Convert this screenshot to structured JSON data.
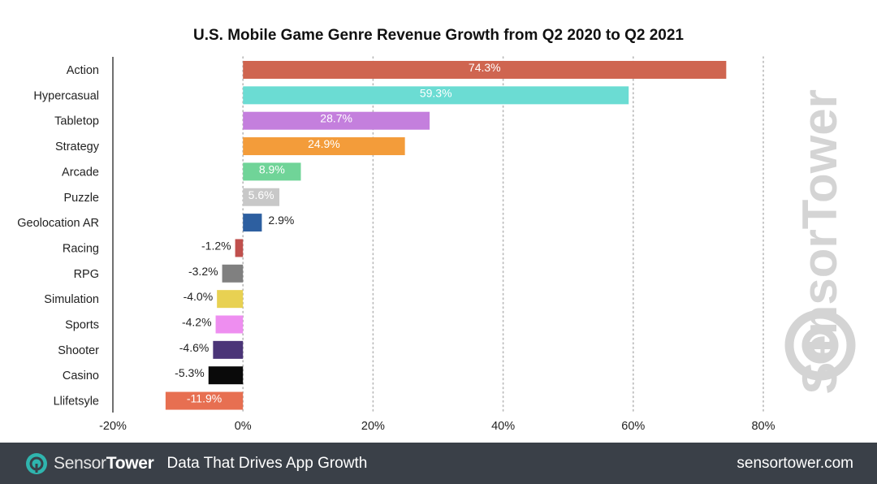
{
  "chart_data": {
    "type": "bar",
    "orientation": "horizontal",
    "title": "U.S. Mobile Game Genre Revenue Growth from Q2 2020 to Q2 2021",
    "categories": [
      "Action",
      "Hypercasual",
      "Tabletop",
      "Strategy",
      "Arcade",
      "Puzzle",
      "Geolocation AR",
      "Racing",
      "RPG",
      "Simulation",
      "Sports",
      "Shooter",
      "Casino",
      "Llifetsyle"
    ],
    "values": [
      74.3,
      59.3,
      28.7,
      24.9,
      8.9,
      5.6,
      2.9,
      -1.2,
      -3.2,
      -4.0,
      -4.2,
      -4.6,
      -5.3,
      -11.9
    ],
    "value_labels": [
      "74.3%",
      "59.3%",
      "28.7%",
      "24.9%",
      "8.9%",
      "5.6%",
      "2.9%",
      "-1.2%",
      "-3.2%",
      "-4.0%",
      "-4.2%",
      "-4.6%",
      "-5.3%",
      "-11.9%"
    ],
    "colors": [
      "#cf6550",
      "#6bdcd3",
      "#c47fdd",
      "#f39c3a",
      "#70d498",
      "#c8c8c8",
      "#2d5fa0",
      "#c0504d",
      "#808080",
      "#e8d152",
      "#ee8ef0",
      "#4b3578",
      "#0a0a0a",
      "#e76f51"
    ],
    "label_inside": [
      true,
      true,
      true,
      true,
      true,
      true,
      false,
      false,
      false,
      false,
      false,
      false,
      false,
      true
    ],
    "xlim": [
      -20,
      80
    ],
    "xticks": [
      -20,
      0,
      20,
      40,
      60,
      80
    ],
    "xtick_labels": [
      "-20%",
      "0%",
      "20%",
      "40%",
      "60%",
      "80%"
    ],
    "grid": "vertical-dotted",
    "xlabel": "",
    "ylabel": ""
  },
  "watermark": {
    "text": "SensorTower"
  },
  "footer": {
    "brand_part1": "Sensor",
    "brand_part2": "Tower",
    "tagline": "Data That Drives App Growth",
    "website": "sensortower.com"
  },
  "colors": {
    "footer_bg": "#3a4048",
    "brand_accent": "#2fb5ae"
  }
}
